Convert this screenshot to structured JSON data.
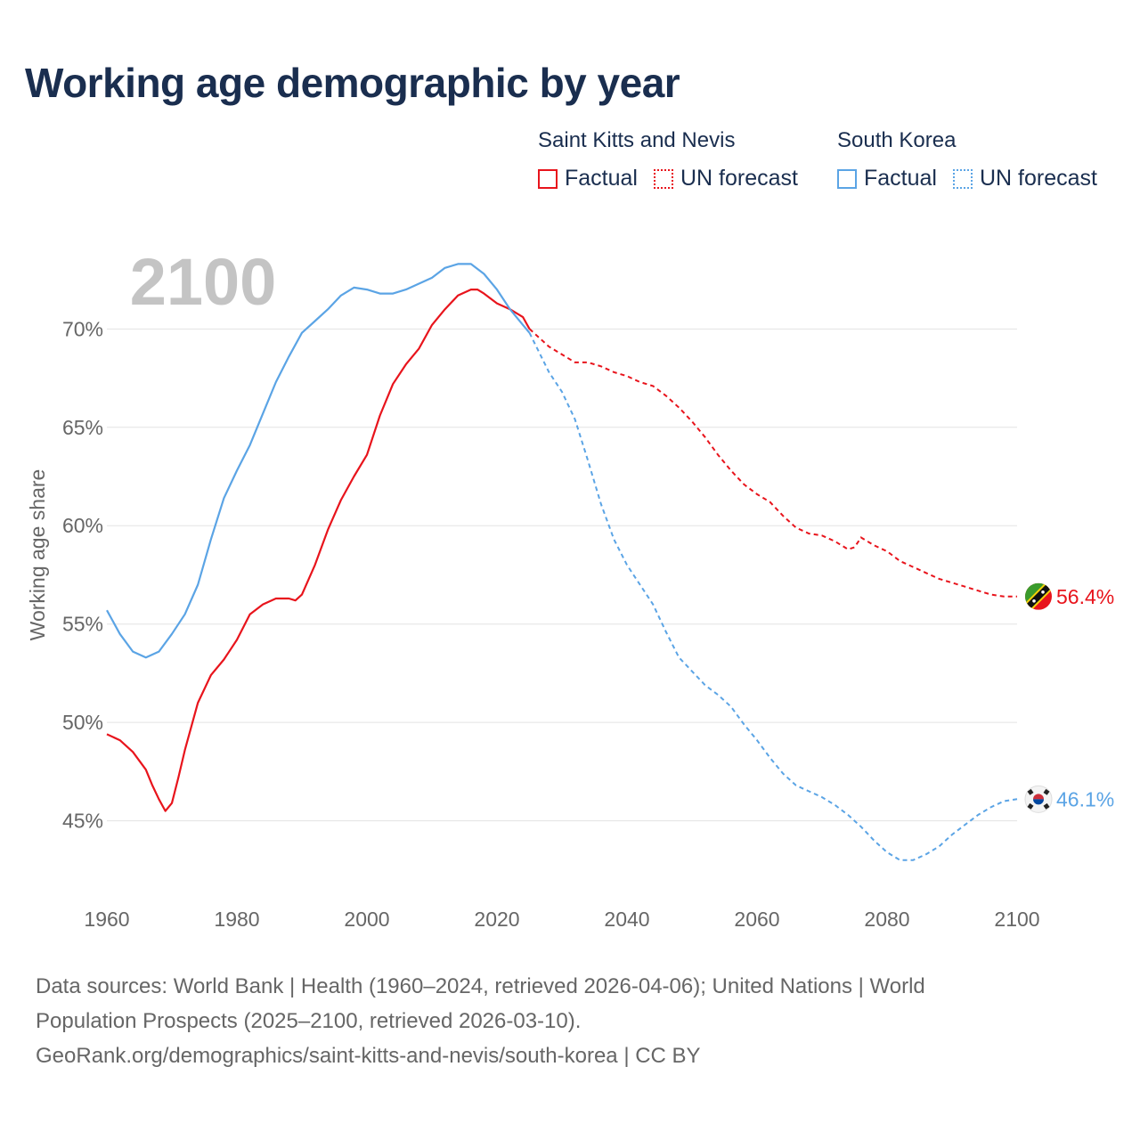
{
  "title": "Working age demographic by year",
  "legend": {
    "series": [
      {
        "name": "Saint Kitts and Nevis",
        "color": "#e8141c",
        "factual_label": "Factual",
        "forecast_label": "UN forecast"
      },
      {
        "name": "South Korea",
        "color": "#5ba4e5",
        "factual_label": "Factual",
        "forecast_label": "UN forecast"
      }
    ]
  },
  "year_watermark": "2100",
  "footer": {
    "line1": "Data sources: World Bank | Health (1960–2024, retrieved 2026-04-06); United Nations | World",
    "line2": "Population Prospects (2025–2100, retrieved 2026-03-10).",
    "line3": "GeoRank.org/demographics/saint-kitts-and-nevis/south-korea | CC BY"
  },
  "chart_data": {
    "type": "line",
    "title": "Working age demographic by year",
    "ylabel": "Working age share",
    "xlabel": "",
    "xlim": [
      1960,
      2100
    ],
    "ylim": [
      41,
      73.5
    ],
    "x_ticks": [
      "1960",
      "1980",
      "2000",
      "2020",
      "2040",
      "2060",
      "2080",
      "2100"
    ],
    "y_ticks": [
      {
        "value": 45,
        "label": "45%"
      },
      {
        "value": 50,
        "label": "50%"
      },
      {
        "value": 55,
        "label": "55%"
      },
      {
        "value": 60,
        "label": "60%"
      },
      {
        "value": 65,
        "label": "65%"
      },
      {
        "value": 70,
        "label": "70%"
      }
    ],
    "forecast_start_year": 2025,
    "series": [
      {
        "name": "Saint Kitts and Nevis",
        "color": "#e8141c",
        "end_label": "56.4%",
        "flag": "kn",
        "points": [
          [
            1960,
            49.4
          ],
          [
            1962,
            49.1
          ],
          [
            1964,
            48.5
          ],
          [
            1966,
            47.6
          ],
          [
            1967,
            46.8
          ],
          [
            1968,
            46.1
          ],
          [
            1969,
            45.5
          ],
          [
            1970,
            45.9
          ],
          [
            1971,
            47.2
          ],
          [
            1972,
            48.6
          ],
          [
            1974,
            51.0
          ],
          [
            1976,
            52.4
          ],
          [
            1978,
            53.2
          ],
          [
            1980,
            54.2
          ],
          [
            1982,
            55.5
          ],
          [
            1984,
            56.0
          ],
          [
            1986,
            56.3
          ],
          [
            1988,
            56.3
          ],
          [
            1989,
            56.2
          ],
          [
            1990,
            56.5
          ],
          [
            1992,
            58.0
          ],
          [
            1994,
            59.8
          ],
          [
            1996,
            61.3
          ],
          [
            1998,
            62.5
          ],
          [
            2000,
            63.6
          ],
          [
            2002,
            65.6
          ],
          [
            2004,
            67.2
          ],
          [
            2006,
            68.2
          ],
          [
            2008,
            69.0
          ],
          [
            2010,
            70.2
          ],
          [
            2012,
            71.0
          ],
          [
            2014,
            71.7
          ],
          [
            2016,
            72.0
          ],
          [
            2017,
            72.0
          ],
          [
            2018,
            71.8
          ],
          [
            2020,
            71.3
          ],
          [
            2022,
            71.0
          ],
          [
            2024,
            70.6
          ],
          [
            2025,
            70.0
          ],
          [
            2028,
            69.1
          ],
          [
            2030,
            68.7
          ],
          [
            2032,
            68.3
          ],
          [
            2034,
            68.3
          ],
          [
            2036,
            68.1
          ],
          [
            2038,
            67.8
          ],
          [
            2040,
            67.6
          ],
          [
            2042,
            67.3
          ],
          [
            2044,
            67.1
          ],
          [
            2046,
            66.6
          ],
          [
            2048,
            66.0
          ],
          [
            2050,
            65.3
          ],
          [
            2052,
            64.5
          ],
          [
            2054,
            63.6
          ],
          [
            2056,
            62.8
          ],
          [
            2058,
            62.1
          ],
          [
            2060,
            61.6
          ],
          [
            2062,
            61.2
          ],
          [
            2064,
            60.5
          ],
          [
            2066,
            59.9
          ],
          [
            2068,
            59.6
          ],
          [
            2070,
            59.5
          ],
          [
            2072,
            59.2
          ],
          [
            2074,
            58.8
          ],
          [
            2075,
            58.9
          ],
          [
            2076,
            59.4
          ],
          [
            2078,
            59.0
          ],
          [
            2080,
            58.7
          ],
          [
            2082,
            58.2
          ],
          [
            2084,
            57.9
          ],
          [
            2086,
            57.6
          ],
          [
            2088,
            57.3
          ],
          [
            2090,
            57.1
          ],
          [
            2092,
            56.9
          ],
          [
            2094,
            56.7
          ],
          [
            2096,
            56.5
          ],
          [
            2098,
            56.4
          ],
          [
            2100,
            56.4
          ]
        ]
      },
      {
        "name": "South Korea",
        "color": "#5ba4e5",
        "end_label": "46.1%",
        "flag": "kr",
        "points": [
          [
            1960,
            55.7
          ],
          [
            1962,
            54.5
          ],
          [
            1964,
            53.6
          ],
          [
            1966,
            53.3
          ],
          [
            1968,
            53.6
          ],
          [
            1970,
            54.5
          ],
          [
            1972,
            55.5
          ],
          [
            1974,
            57.0
          ],
          [
            1976,
            59.3
          ],
          [
            1978,
            61.4
          ],
          [
            1980,
            62.8
          ],
          [
            1982,
            64.1
          ],
          [
            1984,
            65.7
          ],
          [
            1986,
            67.3
          ],
          [
            1988,
            68.6
          ],
          [
            1990,
            69.8
          ],
          [
            1992,
            70.4
          ],
          [
            1994,
            71.0
          ],
          [
            1996,
            71.7
          ],
          [
            1998,
            72.1
          ],
          [
            2000,
            72.0
          ],
          [
            2002,
            71.8
          ],
          [
            2004,
            71.8
          ],
          [
            2006,
            72.0
          ],
          [
            2008,
            72.3
          ],
          [
            2010,
            72.6
          ],
          [
            2012,
            73.1
          ],
          [
            2014,
            73.3
          ],
          [
            2016,
            73.3
          ],
          [
            2018,
            72.8
          ],
          [
            2020,
            72.0
          ],
          [
            2022,
            71.0
          ],
          [
            2024,
            70.2
          ],
          [
            2025,
            69.8
          ],
          [
            2028,
            67.8
          ],
          [
            2030,
            66.8
          ],
          [
            2032,
            65.4
          ],
          [
            2034,
            63.3
          ],
          [
            2036,
            61.1
          ],
          [
            2038,
            59.3
          ],
          [
            2040,
            58.0
          ],
          [
            2042,
            57.0
          ],
          [
            2044,
            56.0
          ],
          [
            2046,
            54.6
          ],
          [
            2048,
            53.3
          ],
          [
            2050,
            52.6
          ],
          [
            2052,
            51.9
          ],
          [
            2054,
            51.4
          ],
          [
            2056,
            50.8
          ],
          [
            2058,
            49.9
          ],
          [
            2060,
            49.1
          ],
          [
            2062,
            48.2
          ],
          [
            2064,
            47.4
          ],
          [
            2066,
            46.8
          ],
          [
            2068,
            46.5
          ],
          [
            2070,
            46.2
          ],
          [
            2072,
            45.8
          ],
          [
            2074,
            45.3
          ],
          [
            2076,
            44.7
          ],
          [
            2078,
            44.0
          ],
          [
            2080,
            43.4
          ],
          [
            2082,
            43.0
          ],
          [
            2084,
            43.0
          ],
          [
            2086,
            43.3
          ],
          [
            2088,
            43.7
          ],
          [
            2090,
            44.3
          ],
          [
            2092,
            44.8
          ],
          [
            2094,
            45.3
          ],
          [
            2096,
            45.7
          ],
          [
            2098,
            46.0
          ],
          [
            2100,
            46.1
          ]
        ]
      }
    ]
  }
}
